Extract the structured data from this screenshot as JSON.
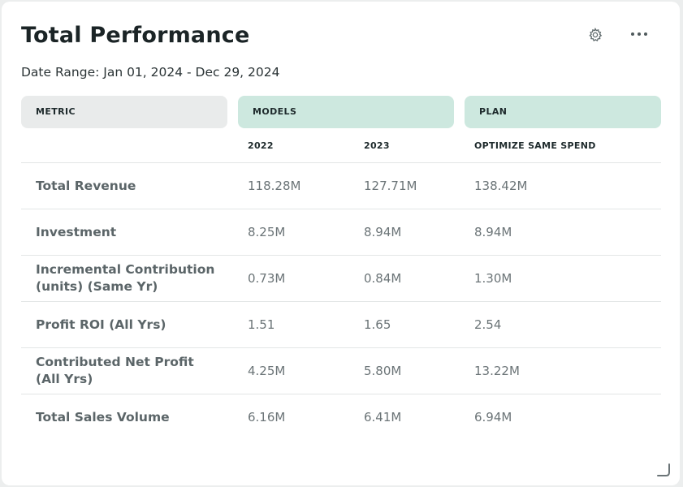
{
  "card": {
    "title": "Total Performance",
    "date_range": "Date Range: Jan 01, 2024 - Dec 29, 2024"
  },
  "icons": {
    "settings": "gear-icon",
    "more": "more-horizontal-icon",
    "resize": "resize-handle-icon"
  },
  "headers": {
    "metric": "METRIC",
    "models": "MODELS",
    "plan": "PLAN",
    "sub": [
      "2022",
      "2023",
      "OPTIMIZE SAME SPEND"
    ]
  },
  "rows": [
    {
      "metric": "Total Revenue",
      "v2022": "118.28M",
      "v2023": "127.71M",
      "plan": "138.42M"
    },
    {
      "metric": "Investment",
      "v2022": "8.25M",
      "v2023": "8.94M",
      "plan": "8.94M"
    },
    {
      "metric": "Incremental Contribution (units) (Same Yr)",
      "v2022": "0.73M",
      "v2023": "0.84M",
      "plan": "1.30M"
    },
    {
      "metric": "Profit ROI (All Yrs)",
      "v2022": "1.51",
      "v2023": "1.65",
      "plan": "2.54"
    },
    {
      "metric": "Contributed Net Profit (All Yrs)",
      "v2022": "4.25M",
      "v2023": "5.80M",
      "plan": "13.22M"
    },
    {
      "metric": "Total Sales Volume",
      "v2022": "6.16M",
      "v2023": "6.41M",
      "plan": "6.94M"
    }
  ],
  "colors": {
    "header_green": "#cde8df",
    "header_gray": "#e9ebeb",
    "title": "#1b2426"
  }
}
